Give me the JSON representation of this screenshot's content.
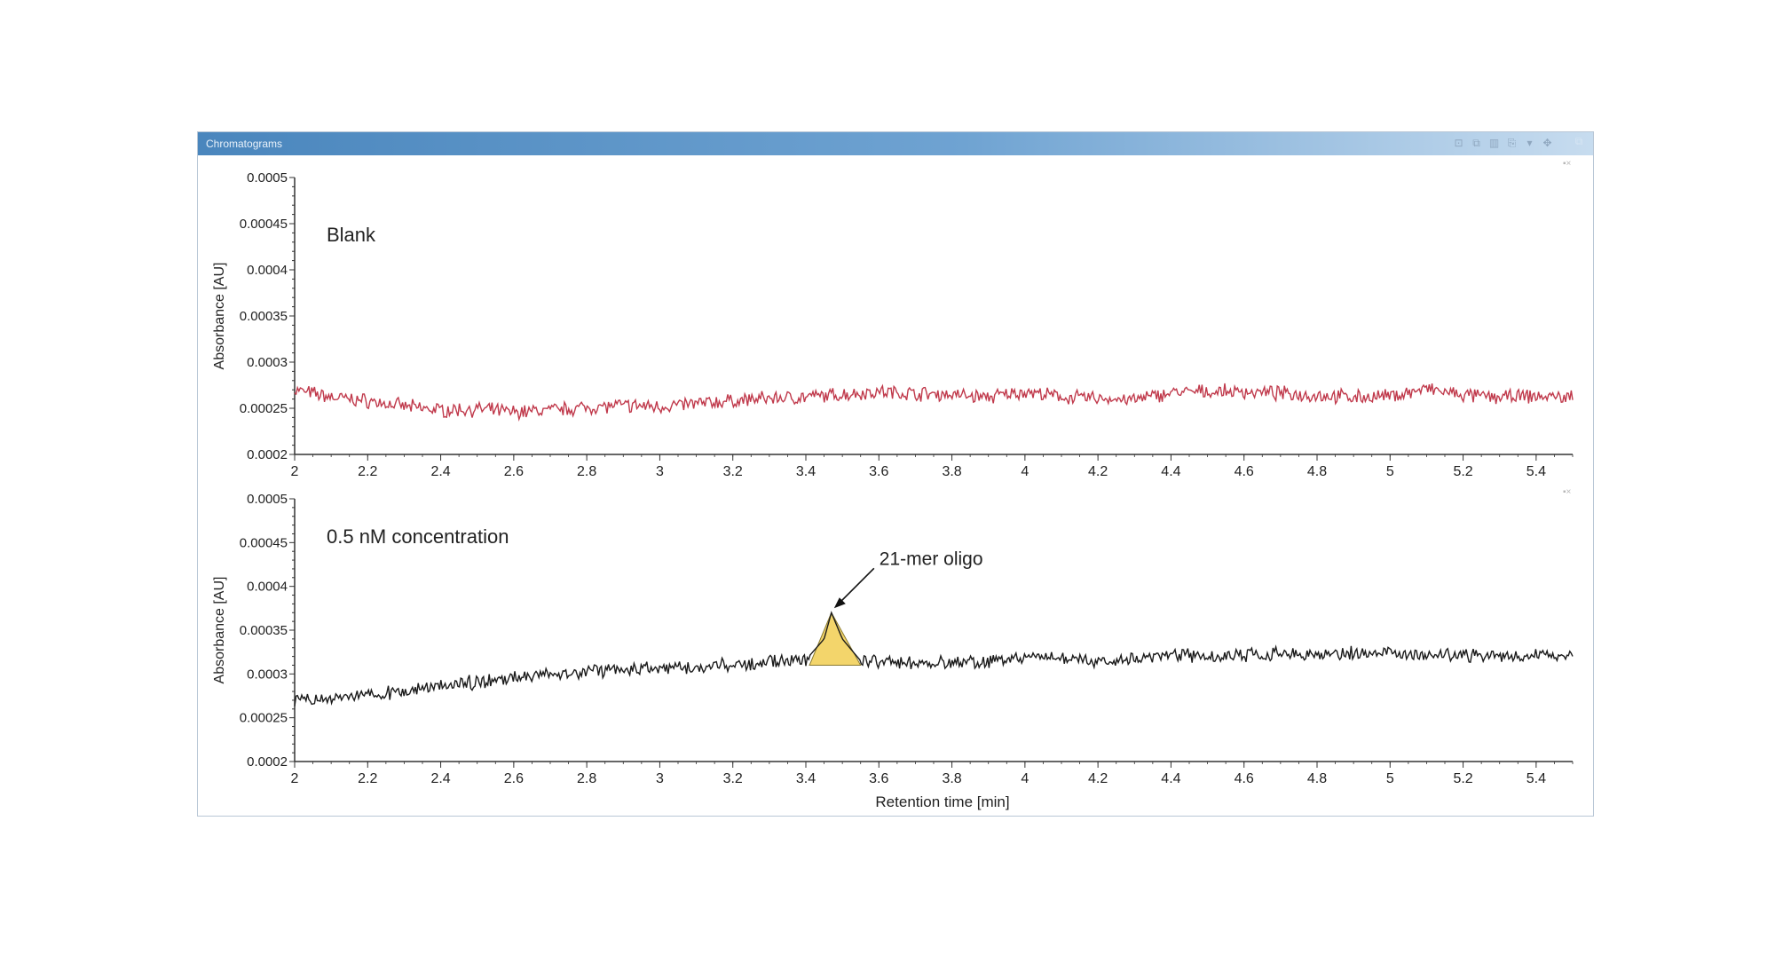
{
  "window": {
    "title": "Chromatograms",
    "toolbar_icons": [
      "zoom-icon",
      "copy-icon",
      "chart-icon",
      "export-icon",
      "dropdown-icon",
      "pin-icon"
    ],
    "restore_icon": "restore-icon"
  },
  "colors": {
    "blank_trace": "#c0394b",
    "sample_trace": "#1a1a1a",
    "peak_fill": "#f3d56b",
    "axis": "#333333",
    "titlebar": "#4a86bd"
  },
  "chart_data": [
    {
      "type": "line",
      "annotation": "Blank",
      "xlabel": "",
      "ylabel": "Absorbance [AU]",
      "xlim": [
        2,
        5.5
      ],
      "ylim": [
        0.0002,
        0.0005
      ],
      "xticks": [
        "2",
        "2.2",
        "2.4",
        "2.6",
        "2.8",
        "3",
        "3.2",
        "3.4",
        "3.6",
        "3.8",
        "4",
        "4.2",
        "4.4",
        "4.6",
        "4.8",
        "5",
        "5.2",
        "5.4"
      ],
      "yticks": [
        "0.0002",
        "0.00025",
        "0.0003",
        "0.00035",
        "0.0004",
        "0.00045",
        "0.0005"
      ],
      "series": [
        {
          "x": [
            2.0,
            2.1,
            2.2,
            2.3,
            2.4,
            2.5,
            2.6,
            2.7,
            2.8,
            2.9,
            3.0,
            3.1,
            3.2,
            3.3,
            3.4,
            3.5,
            3.6,
            3.7,
            3.8,
            3.9,
            4.0,
            4.1,
            4.2,
            4.3,
            4.4,
            4.5,
            4.6,
            4.7,
            4.8,
            4.9,
            5.0,
            5.1,
            5.2,
            5.3,
            5.4,
            5.5
          ],
          "values": [
            0.00027,
            0.000262,
            0.000258,
            0.000252,
            0.000248,
            0.000249,
            0.000246,
            0.000248,
            0.000251,
            0.000253,
            0.000252,
            0.000255,
            0.000258,
            0.000261,
            0.000262,
            0.000265,
            0.000268,
            0.000266,
            0.000265,
            0.000262,
            0.000268,
            0.000262,
            0.000261,
            0.000259,
            0.000267,
            0.000268,
            0.000268,
            0.000266,
            0.000264,
            0.000262,
            0.000263,
            0.000271,
            0.000264,
            0.000262,
            0.000263,
            0.000262
          ]
        }
      ]
    },
    {
      "type": "line",
      "annotation": "0.5 nM concentration",
      "xlabel": "Retention time [min]",
      "ylabel": "Absorbance [AU]",
      "xlim": [
        2,
        5.5
      ],
      "ylim": [
        0.0002,
        0.0005
      ],
      "xticks": [
        "2",
        "2.2",
        "2.4",
        "2.6",
        "2.8",
        "3",
        "3.2",
        "3.4",
        "3.6",
        "3.8",
        "4",
        "4.2",
        "4.4",
        "4.6",
        "4.8",
        "5",
        "5.2",
        "5.4"
      ],
      "yticks": [
        "0.0002",
        "0.00025",
        "0.0003",
        "0.00035",
        "0.0004",
        "0.00045",
        "0.0005"
      ],
      "peak": {
        "label": "21-mer oligo",
        "x": 3.47,
        "y": 0.00037,
        "start": 3.41,
        "end": 3.55,
        "baseline": 0.00031
      },
      "series": [
        {
          "x": [
            2.0,
            2.1,
            2.2,
            2.3,
            2.4,
            2.5,
            2.6,
            2.7,
            2.8,
            2.9,
            3.0,
            3.1,
            3.2,
            3.3,
            3.4,
            3.45,
            3.47,
            3.5,
            3.55,
            3.6,
            3.7,
            3.8,
            3.9,
            4.0,
            4.1,
            4.2,
            4.3,
            4.4,
            4.5,
            4.6,
            4.7,
            4.8,
            4.9,
            5.0,
            5.1,
            5.2,
            5.3,
            5.4,
            5.5
          ],
          "values": [
            0.000268,
            0.000271,
            0.000276,
            0.000281,
            0.000286,
            0.000291,
            0.000296,
            0.0003,
            0.000303,
            0.000305,
            0.000306,
            0.000308,
            0.00031,
            0.000313,
            0.000316,
            0.00034,
            0.00037,
            0.00034,
            0.000315,
            0.000314,
            0.000313,
            0.000312,
            0.000314,
            0.000318,
            0.000318,
            0.000314,
            0.000316,
            0.000324,
            0.000318,
            0.000321,
            0.000322,
            0.000321,
            0.000324,
            0.000325,
            0.000322,
            0.000321,
            0.00032,
            0.000321,
            0.000322
          ]
        }
      ]
    }
  ]
}
